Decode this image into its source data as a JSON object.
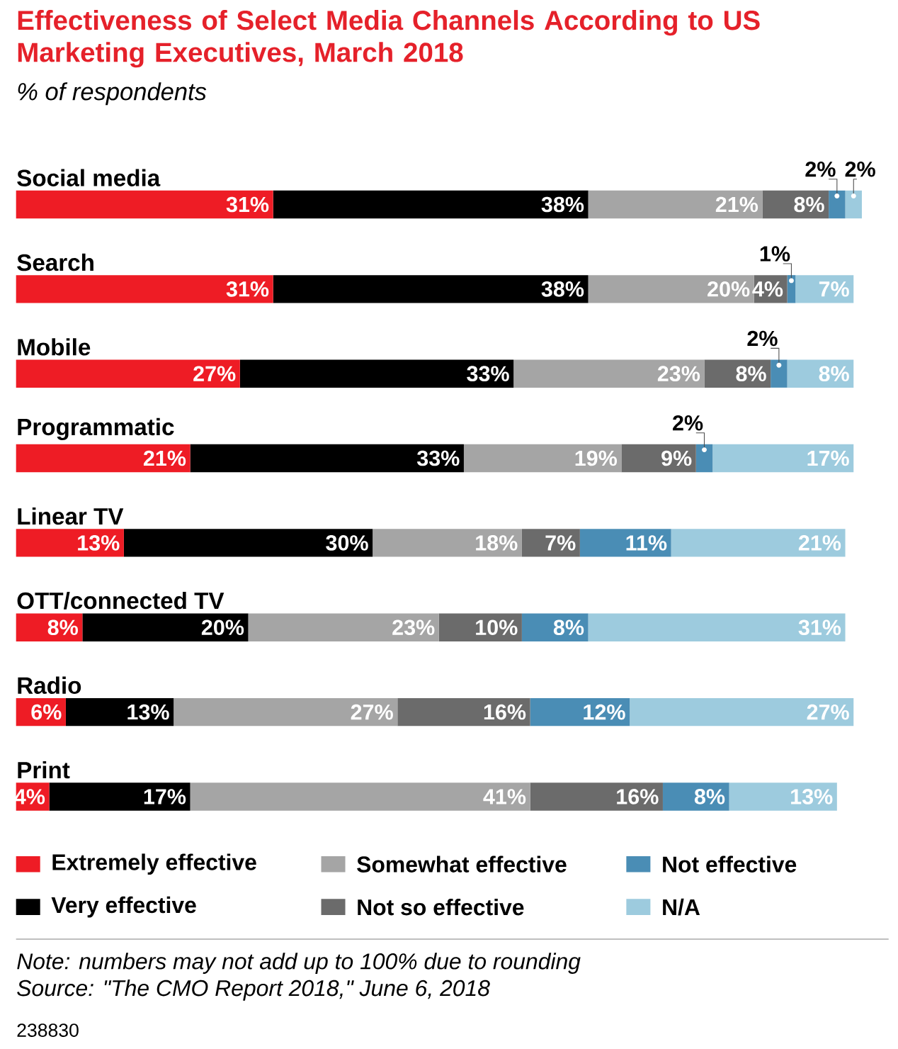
{
  "chart_data": {
    "type": "bar",
    "orientation": "horizontal",
    "stacked": true,
    "title": "Effectiveness of Select Media Channels According to US Marketing Executives, March 2018",
    "subtitle": "% of respondents",
    "categories": [
      "Social media",
      "Search",
      "Mobile",
      "Programmatic",
      "Linear TV",
      "OTT/connected TV",
      "Radio",
      "Print"
    ],
    "series": [
      {
        "name": "Extremely effective",
        "color": "#ee1c25",
        "values": [
          31,
          31,
          27,
          21,
          13,
          8,
          6,
          4
        ],
        "value_labels": [
          "31%",
          "31%",
          "27%",
          "21%",
          "13%",
          "8%",
          "6%",
          "4%"
        ]
      },
      {
        "name": "Very effective",
        "color": "#000000",
        "values": [
          38,
          38,
          33,
          33,
          30,
          20,
          13,
          17
        ],
        "value_labels": [
          "38%",
          "38%",
          "33%",
          "33%",
          "30%",
          "20%",
          "13%",
          "17%"
        ]
      },
      {
        "name": "Somewhat effective",
        "color": "#a5a5a5",
        "values": [
          21,
          20,
          23,
          19,
          18,
          23,
          27,
          41
        ],
        "value_labels": [
          "21%",
          "20%",
          "23%",
          "19%",
          "18%",
          "23%",
          "27%",
          "41%"
        ]
      },
      {
        "name": "Not so effective",
        "color": "#6b6b6b",
        "values": [
          8,
          4,
          8,
          9,
          7,
          10,
          16,
          16
        ],
        "value_labels": [
          "8%",
          "4%",
          "8%",
          "9%",
          "7%",
          "10%",
          "16%",
          "16%"
        ]
      },
      {
        "name": "Not effective",
        "color": "#4a8db5",
        "values": [
          2,
          1,
          2,
          2,
          11,
          8,
          12,
          8
        ],
        "value_labels": [
          "2%",
          "1%",
          "2%",
          "2%",
          "11%",
          "8%",
          "12%",
          "8%"
        ]
      },
      {
        "name": "N/A",
        "color": "#9dcbde",
        "values": [
          2,
          7,
          8,
          17,
          21,
          31,
          27,
          13
        ],
        "value_labels": [
          "2%",
          "7%",
          "8%",
          "17%",
          "21%",
          "31%",
          "27%",
          "13%"
        ]
      }
    ],
    "legend": "bottom",
    "annotations": [
      "Note: numbers may not add up to 100% due to rounding",
      "Source: \"The CMO Report 2018,\" June 6, 2018",
      "238830"
    ]
  }
}
